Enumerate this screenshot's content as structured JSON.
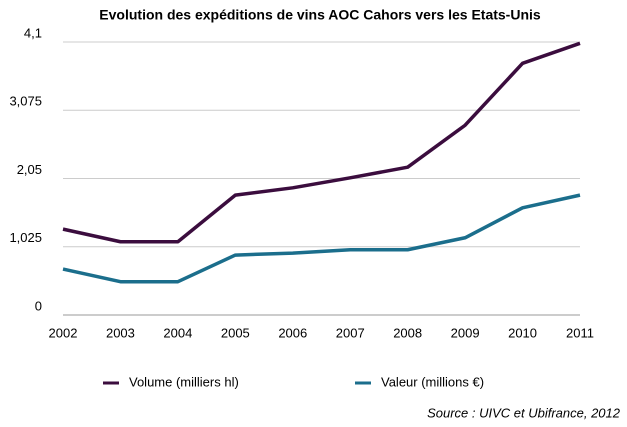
{
  "chart_data": {
    "type": "line",
    "title": "Evolution des expéditions de vins AOC Cahors vers les Etats-Unis",
    "categories": [
      "2002",
      "2003",
      "2004",
      "2005",
      "2006",
      "2007",
      "2008",
      "2009",
      "2010",
      "2011"
    ],
    "series": [
      {
        "name": "Volume (milliers hl)",
        "color": "#3b0d3e",
        "values": [
          1.29,
          1.1,
          1.1,
          1.8,
          1.91,
          2.06,
          2.22,
          2.85,
          3.78,
          4.08
        ]
      },
      {
        "name": "Valeur (millions €)",
        "color": "#1b6e8c",
        "values": [
          0.69,
          0.5,
          0.5,
          0.9,
          0.93,
          0.98,
          0.98,
          1.16,
          1.61,
          1.8
        ]
      }
    ],
    "ylim": [
      0,
      4.1
    ],
    "yticks": [
      0,
      {
        "value": 1.025,
        "label": "1,025"
      },
      {
        "value": 2.05,
        "label": "2,05"
      },
      {
        "value": 3.075,
        "label": "3,075"
      },
      {
        "value": 4.1,
        "label": "4,1"
      }
    ],
    "grid": true,
    "legend": "bottom",
    "source": "Source : UIVC et Ubifrance, 2012"
  }
}
